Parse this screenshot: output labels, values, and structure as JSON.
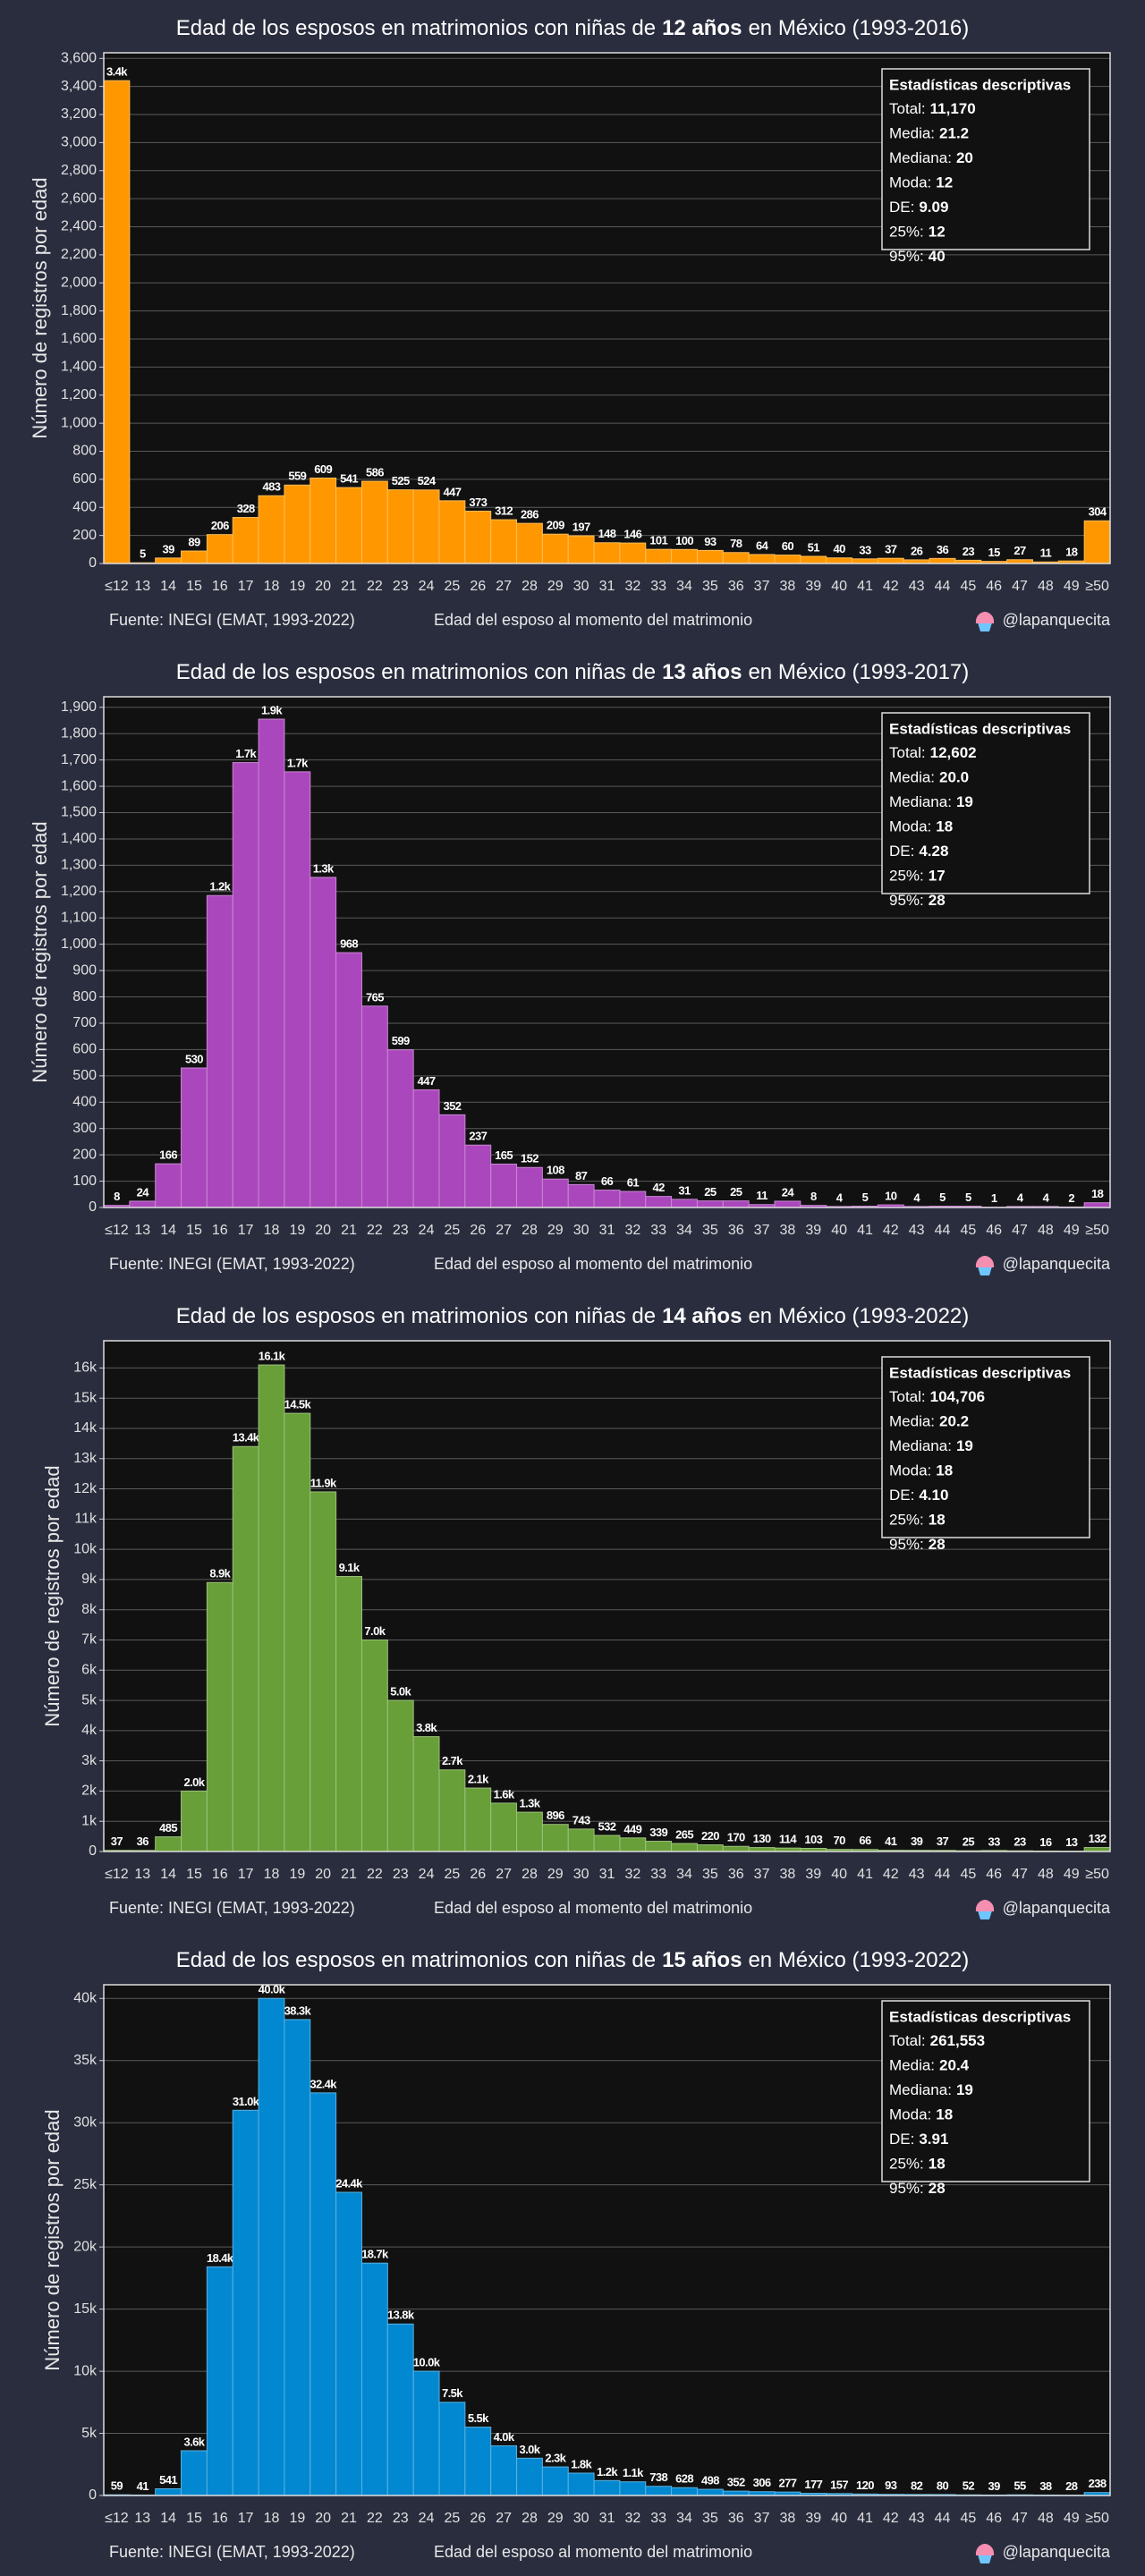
{
  "chart_data": [
    {
      "type": "bar",
      "title": {
        "before": "Edad de los esposos en matrimonios con niñas de",
        "bold": "12 años",
        "after": "en México  (1993-2016)"
      },
      "x_label": "Edad del esposo al momento del matrimonio",
      "y_label": "Número de registros por edad",
      "source": "Fuente: INEGI (EMAT, 1993-2022)",
      "credit": "@lapanquecita",
      "categories": [
        "≤12",
        "13",
        "14",
        "15",
        "16",
        "17",
        "18",
        "19",
        "20",
        "21",
        "22",
        "23",
        "24",
        "25",
        "26",
        "27",
        "28",
        "29",
        "30",
        "31",
        "32",
        "33",
        "34",
        "35",
        "36",
        "37",
        "38",
        "39",
        "40",
        "41",
        "42",
        "43",
        "44",
        "45",
        "46",
        "47",
        "48",
        "49",
        "≥50"
      ],
      "values": [
        3441,
        5,
        39,
        89,
        206,
        328,
        483,
        559,
        609,
        541,
        586,
        525,
        524,
        447,
        373,
        312,
        286,
        209,
        197,
        148,
        146,
        101,
        100,
        93,
        78,
        64,
        60,
        51,
        40,
        33,
        37,
        26,
        36,
        23,
        15,
        27,
        11,
        18,
        304
      ],
      "value_labels": [
        "3.4k",
        "5",
        "39",
        "89",
        "206",
        "328",
        "483",
        "559",
        "609",
        "541",
        "586",
        "525",
        "524",
        "447",
        "373",
        "312",
        "286",
        "209",
        "197",
        "148",
        "146",
        "101",
        "100",
        "93",
        "78",
        "64",
        "60",
        "51",
        "40",
        "33",
        "37",
        "26",
        "36",
        "23",
        "15",
        "27",
        "11",
        "18",
        "304"
      ],
      "color": "#ff9800",
      "ylim": [
        0,
        3640
      ],
      "yticks": [
        0,
        200,
        400,
        600,
        800,
        {
          "value": 1000,
          "label": "1,000"
        },
        {
          "value": 1200,
          "label": "1,200"
        },
        {
          "value": 1400,
          "label": "1,400"
        },
        {
          "value": 1600,
          "label": "1,600"
        },
        {
          "value": 1800,
          "label": "1,800"
        },
        {
          "value": 2000,
          "label": "2,000"
        },
        {
          "value": 2200,
          "label": "2,200"
        },
        {
          "value": 2400,
          "label": "2,400"
        },
        {
          "value": 2600,
          "label": "2,600"
        },
        {
          "value": 2800,
          "label": "2,800"
        },
        {
          "value": 3000,
          "label": "3,000"
        },
        {
          "value": 3200,
          "label": "3,200"
        },
        {
          "value": 3400,
          "label": "3,400"
        },
        {
          "value": 3600,
          "label": "3,600"
        }
      ],
      "grid": true,
      "stats": {
        "title": "Estadísticas descriptivas",
        "rows": [
          {
            "label": "Total:",
            "value": "11,170"
          },
          {
            "label": "Media:",
            "value": "21.2"
          },
          {
            "label": "Mediana:",
            "value": "20"
          },
          {
            "label": "Moda:",
            "value": "12"
          },
          {
            "label": "DE:",
            "value": "9.09"
          },
          {
            "label": "25%:",
            "value": "12"
          },
          {
            "label": "95%:",
            "value": "40"
          }
        ]
      }
    },
    {
      "type": "bar",
      "title": {
        "before": "Edad de los esposos en matrimonios con niñas de",
        "bold": "13 años",
        "after": "en México  (1993-2017)"
      },
      "x_label": "Edad del esposo al momento del matrimonio",
      "y_label": "Número de registros por edad",
      "source": "Fuente: INEGI (EMAT, 1993-2022)",
      "credit": "@lapanquecita",
      "categories": [
        "≤12",
        "13",
        "14",
        "15",
        "16",
        "17",
        "18",
        "19",
        "20",
        "21",
        "22",
        "23",
        "24",
        "25",
        "26",
        "27",
        "28",
        "29",
        "30",
        "31",
        "32",
        "33",
        "34",
        "35",
        "36",
        "37",
        "38",
        "39",
        "40",
        "41",
        "42",
        "43",
        "44",
        "45",
        "46",
        "47",
        "48",
        "49",
        "≥50"
      ],
      "values": [
        8,
        24,
        166,
        530,
        1185,
        1690,
        1855,
        1655,
        1254,
        968,
        765,
        599,
        447,
        352,
        237,
        165,
        152,
        108,
        87,
        66,
        61,
        42,
        31,
        25,
        25,
        11,
        24,
        8,
        4,
        5,
        10,
        4,
        5,
        5,
        1,
        4,
        4,
        2,
        18
      ],
      "value_labels": [
        "8",
        "24",
        "166",
        "530",
        "1.2k",
        "1.7k",
        "1.9k",
        "1.7k",
        "1.3k",
        "968",
        "765",
        "599",
        "447",
        "352",
        "237",
        "165",
        "152",
        "108",
        "87",
        "66",
        "61",
        "42",
        "31",
        "25",
        "25",
        "11",
        "24",
        "8",
        "4",
        "5",
        "10",
        "4",
        "5",
        "5",
        "1",
        "4",
        "4",
        "2",
        "18"
      ],
      "color": "#ab47bc",
      "ylim": [
        0,
        1940
      ],
      "yticks": [
        0,
        100,
        200,
        300,
        400,
        500,
        600,
        700,
        800,
        900,
        {
          "value": 1000,
          "label": "1,000"
        },
        {
          "value": 1100,
          "label": "1,100"
        },
        {
          "value": 1200,
          "label": "1,200"
        },
        {
          "value": 1300,
          "label": "1,300"
        },
        {
          "value": 1400,
          "label": "1,400"
        },
        {
          "value": 1500,
          "label": "1,500"
        },
        {
          "value": 1600,
          "label": "1,600"
        },
        {
          "value": 1700,
          "label": "1,700"
        },
        {
          "value": 1800,
          "label": "1,800"
        },
        {
          "value": 1900,
          "label": "1,900"
        }
      ],
      "grid": true,
      "stats": {
        "title": "Estadísticas descriptivas",
        "rows": [
          {
            "label": "Total:",
            "value": "12,602"
          },
          {
            "label": "Media:",
            "value": "20.0"
          },
          {
            "label": "Mediana:",
            "value": "19"
          },
          {
            "label": "Moda:",
            "value": "18"
          },
          {
            "label": "DE:",
            "value": "4.28"
          },
          {
            "label": "25%:",
            "value": "17"
          },
          {
            "label": "95%:",
            "value": "28"
          }
        ]
      }
    },
    {
      "type": "bar",
      "title": {
        "before": "Edad de los esposos en matrimonios con niñas de",
        "bold": "14 años",
        "after": "en México  (1993-2022)"
      },
      "x_label": "Edad del esposo al momento del matrimonio",
      "y_label": "Número de registros por edad",
      "source": "Fuente: INEGI (EMAT, 1993-2022)",
      "credit": "@lapanquecita",
      "categories": [
        "≤12",
        "13",
        "14",
        "15",
        "16",
        "17",
        "18",
        "19",
        "20",
        "21",
        "22",
        "23",
        "24",
        "25",
        "26",
        "27",
        "28",
        "29",
        "30",
        "31",
        "32",
        "33",
        "34",
        "35",
        "36",
        "37",
        "38",
        "39",
        "40",
        "41",
        "42",
        "43",
        "44",
        "45",
        "46",
        "47",
        "48",
        "49",
        "≥50"
      ],
      "values": [
        37,
        36,
        485,
        2000,
        8900,
        13400,
        16100,
        14500,
        11900,
        9100,
        7000,
        5000,
        3800,
        2700,
        2100,
        1600,
        1300,
        896,
        743,
        532,
        449,
        339,
        265,
        220,
        170,
        130,
        114,
        103,
        70,
        66,
        41,
        39,
        37,
        25,
        33,
        23,
        16,
        13,
        132
      ],
      "value_labels": [
        "37",
        "36",
        "485",
        "2.0k",
        "8.9k",
        "13.4k",
        "16.1k",
        "14.5k",
        "11.9k",
        "9.1k",
        "7.0k",
        "5.0k",
        "3.8k",
        "2.7k",
        "2.1k",
        "1.6k",
        "1.3k",
        "896",
        "743",
        "532",
        "449",
        "339",
        "265",
        "220",
        "170",
        "130",
        "114",
        "103",
        "70",
        "66",
        "41",
        "39",
        "37",
        "25",
        "33",
        "23",
        "16",
        "13",
        "132"
      ],
      "color": "#689f38",
      "ylim": [
        0,
        16900
      ],
      "yticks": [
        0,
        {
          "value": 1000,
          "label": "1k"
        },
        {
          "value": 2000,
          "label": "2k"
        },
        {
          "value": 3000,
          "label": "3k"
        },
        {
          "value": 4000,
          "label": "4k"
        },
        {
          "value": 5000,
          "label": "5k"
        },
        {
          "value": 6000,
          "label": "6k"
        },
        {
          "value": 7000,
          "label": "7k"
        },
        {
          "value": 8000,
          "label": "8k"
        },
        {
          "value": 9000,
          "label": "9k"
        },
        {
          "value": 10000,
          "label": "10k"
        },
        {
          "value": 11000,
          "label": "11k"
        },
        {
          "value": 12000,
          "label": "12k"
        },
        {
          "value": 13000,
          "label": "13k"
        },
        {
          "value": 14000,
          "label": "14k"
        },
        {
          "value": 15000,
          "label": "15k"
        },
        {
          "value": 16000,
          "label": "16k"
        }
      ],
      "grid": true,
      "stats": {
        "title": "Estadísticas descriptivas",
        "rows": [
          {
            "label": "Total:",
            "value": "104,706"
          },
          {
            "label": "Media:",
            "value": "20.2"
          },
          {
            "label": "Mediana:",
            "value": "19"
          },
          {
            "label": "Moda:",
            "value": "18"
          },
          {
            "label": "DE:",
            "value": "4.10"
          },
          {
            "label": "25%:",
            "value": "18"
          },
          {
            "label": "95%:",
            "value": "28"
          }
        ]
      }
    },
    {
      "type": "bar",
      "title": {
        "before": "Edad de los esposos en matrimonios con niñas de",
        "bold": "15 años",
        "after": "en México  (1993-2022)"
      },
      "x_label": "Edad del esposo al momento del matrimonio",
      "y_label": "Número de registros por edad",
      "source": "Fuente: INEGI (EMAT, 1993-2022)",
      "credit": "@lapanquecita",
      "categories": [
        "≤12",
        "13",
        "14",
        "15",
        "16",
        "17",
        "18",
        "19",
        "20",
        "21",
        "22",
        "23",
        "24",
        "25",
        "26",
        "27",
        "28",
        "29",
        "30",
        "31",
        "32",
        "33",
        "34",
        "35",
        "36",
        "37",
        "38",
        "39",
        "40",
        "41",
        "42",
        "43",
        "44",
        "45",
        "46",
        "47",
        "48",
        "49",
        "≥50"
      ],
      "values": [
        59,
        41,
        541,
        3600,
        18400,
        31000,
        40000,
        38300,
        32400,
        24400,
        18700,
        13800,
        10000,
        7500,
        5500,
        4000,
        3000,
        2300,
        1800,
        1200,
        1100,
        738,
        628,
        498,
        352,
        306,
        277,
        177,
        157,
        120,
        93,
        82,
        80,
        52,
        39,
        55,
        38,
        28,
        238
      ],
      "value_labels": [
        "59",
        "41",
        "541",
        "3.6k",
        "18.4k",
        "31.0k",
        "40.0k",
        "38.3k",
        "32.4k",
        "24.4k",
        "18.7k",
        "13.8k",
        "10.0k",
        "7.5k",
        "5.5k",
        "4.0k",
        "3.0k",
        "2.3k",
        "1.8k",
        "1.2k",
        "1.1k",
        "738",
        "628",
        "498",
        "352",
        "306",
        "277",
        "177",
        "157",
        "120",
        "93",
        "82",
        "80",
        "52",
        "39",
        "55",
        "38",
        "28",
        "238"
      ],
      "color": "#0288d1",
      "ylim": [
        0,
        41100
      ],
      "yticks": [
        0,
        {
          "value": 5000,
          "label": "5k"
        },
        {
          "value": 10000,
          "label": "10k"
        },
        {
          "value": 15000,
          "label": "15k"
        },
        {
          "value": 20000,
          "label": "20k"
        },
        {
          "value": 25000,
          "label": "25k"
        },
        {
          "value": 30000,
          "label": "30k"
        },
        {
          "value": 35000,
          "label": "35k"
        },
        {
          "value": 40000,
          "label": "40k"
        }
      ],
      "grid": true,
      "stats": {
        "title": "Estadísticas descriptivas",
        "rows": [
          {
            "label": "Total:",
            "value": "261,553"
          },
          {
            "label": "Media:",
            "value": "20.4"
          },
          {
            "label": "Mediana:",
            "value": "19"
          },
          {
            "label": "Moda:",
            "value": "18"
          },
          {
            "label": "DE:",
            "value": "3.91"
          },
          {
            "label": "25%:",
            "value": "18"
          },
          {
            "label": "95%:",
            "value": "28"
          }
        ]
      }
    }
  ]
}
